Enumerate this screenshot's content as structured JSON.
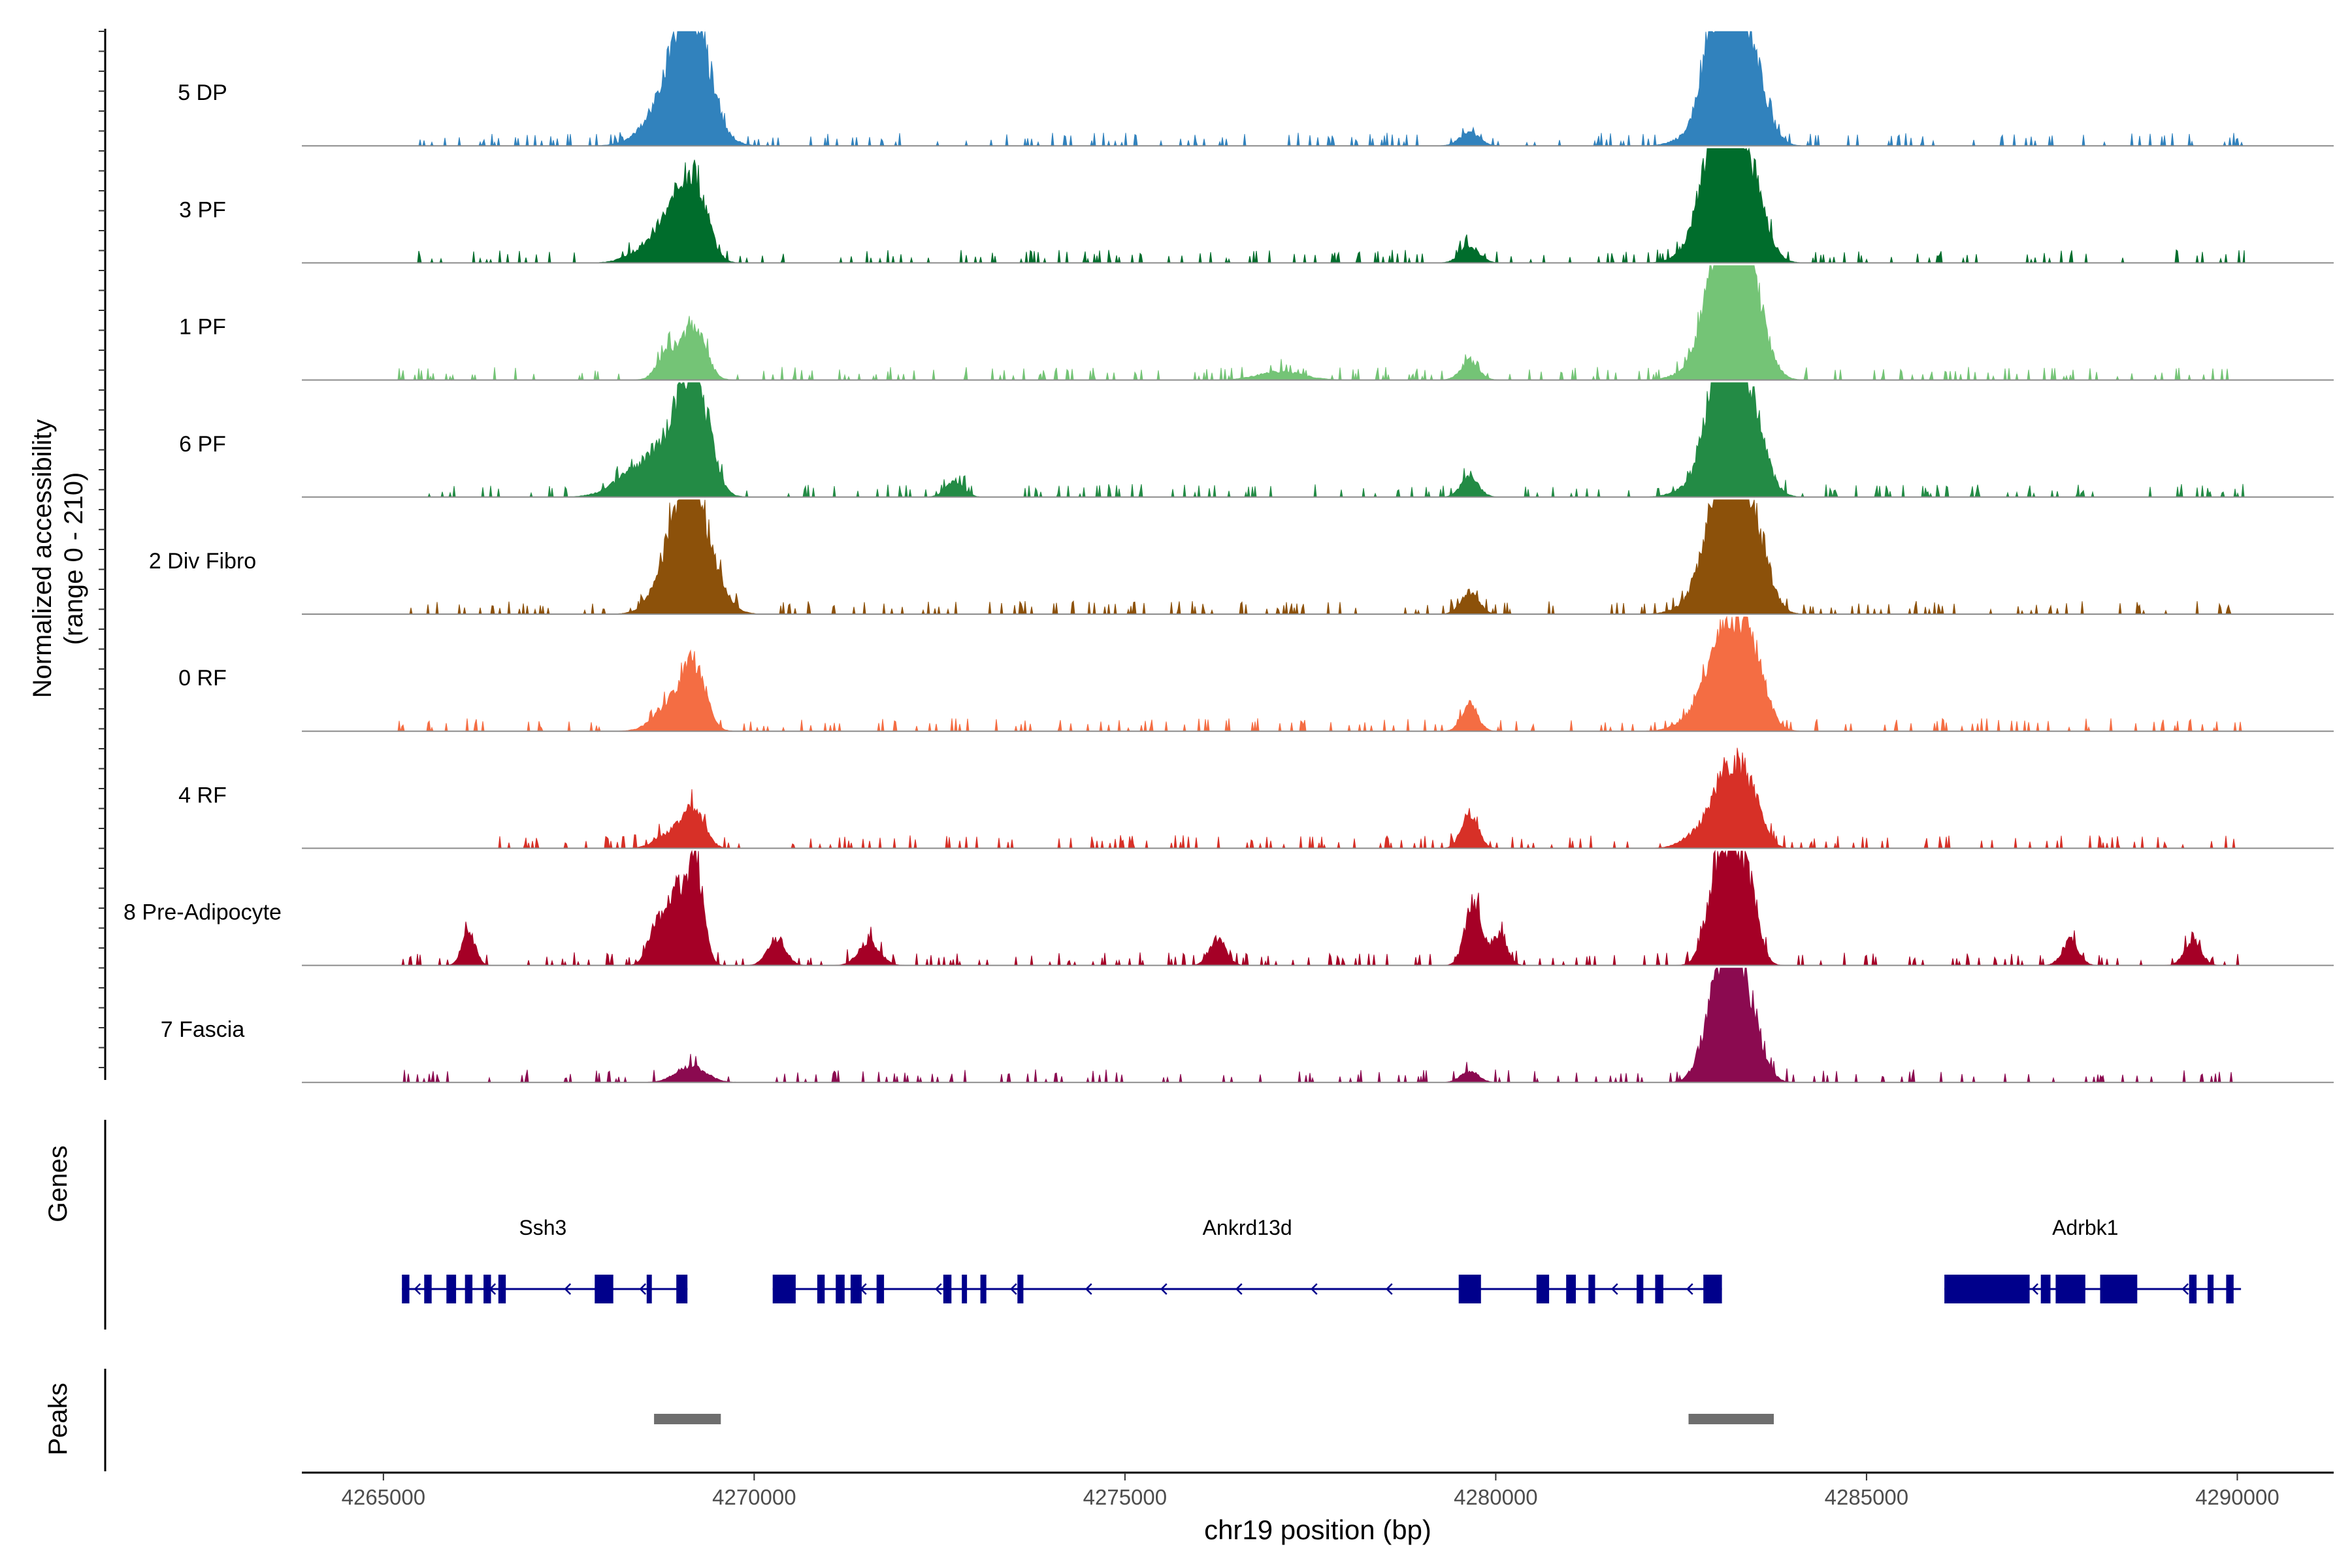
{
  "chart_data": {
    "type": "area",
    "title": "",
    "ylabel_line1": "Normalized accessibility",
    "ylabel_line2": "(range 0 - 210)",
    "ylim": [
      0,
      210
    ],
    "xlabel": "chr19 position (bp)",
    "xlim": [
      4263900,
      4291300
    ],
    "xticks": [
      4265000,
      4270000,
      4275000,
      4280000,
      4285000,
      4290000
    ],
    "xtick_labels": [
      "4265000",
      "4270000",
      "4275000",
      "4280000",
      "4285000",
      "4290000"
    ],
    "track_start": 4265200,
    "track_end": 4290100,
    "grid": false,
    "series": [
      {
        "name": "5 DP",
        "color": "#3182bd",
        "peaks": [
          [
            4269150,
            210,
            230
          ],
          [
            4269000,
            45,
            360
          ],
          [
            4268750,
            35,
            250
          ],
          [
            4279650,
            25,
            130
          ],
          [
            4282900,
            120,
            150
          ],
          [
            4283150,
            200,
            220
          ],
          [
            4283450,
            120,
            200
          ],
          [
            4282600,
            15,
            200
          ]
        ]
      },
      {
        "name": "3 PF",
        "color": "#006d2c",
        "peaks": [
          [
            4269200,
            140,
            170
          ],
          [
            4268900,
            75,
            180
          ],
          [
            4268600,
            30,
            250
          ],
          [
            4279650,
            30,
            130
          ],
          [
            4283150,
            200,
            230
          ],
          [
            4282900,
            120,
            180
          ],
          [
            4283450,
            100,
            200
          ],
          [
            4282600,
            15,
            200
          ]
        ]
      },
      {
        "name": "1 PF",
        "color": "#74c476",
        "peaks": [
          [
            4269200,
            95,
            150
          ],
          [
            4268850,
            55,
            140
          ],
          [
            4279650,
            35,
            120
          ],
          [
            4277100,
            15,
            300
          ],
          [
            4283200,
            210,
            210
          ],
          [
            4282950,
            130,
            180
          ],
          [
            4283450,
            120,
            200
          ],
          [
            4282600,
            15,
            200
          ]
        ]
      },
      {
        "name": "6 PF",
        "color": "#238b45",
        "peaks": [
          [
            4269200,
            195,
            190
          ],
          [
            4268900,
            90,
            270
          ],
          [
            4268400,
            40,
            300
          ],
          [
            4272700,
            30,
            120
          ],
          [
            4279650,
            35,
            120
          ],
          [
            4283200,
            200,
            200
          ],
          [
            4282950,
            140,
            170
          ],
          [
            4283450,
            110,
            200
          ],
          [
            4282600,
            15,
            200
          ]
        ]
      },
      {
        "name": "2 Div Fibro",
        "color": "#8c510a",
        "peaks": [
          [
            4269150,
            195,
            200
          ],
          [
            4268900,
            95,
            230
          ],
          [
            4269450,
            45,
            200
          ],
          [
            4279650,
            40,
            120
          ],
          [
            4283200,
            205,
            220
          ],
          [
            4282950,
            130,
            180
          ],
          [
            4283500,
            110,
            190
          ],
          [
            4282600,
            15,
            200
          ]
        ]
      },
      {
        "name": "0 RF",
        "color": "#f46d43",
        "peaks": [
          [
            4269200,
            105,
            150
          ],
          [
            4268900,
            55,
            220
          ],
          [
            4279650,
            45,
            110
          ],
          [
            4283150,
            160,
            230
          ],
          [
            4283450,
            110,
            190
          ],
          [
            4282800,
            40,
            250
          ]
        ]
      },
      {
        "name": "4 RF",
        "color": "#d73027",
        "peaks": [
          [
            4269200,
            65,
            140
          ],
          [
            4268900,
            30,
            200
          ],
          [
            4279650,
            65,
            110
          ],
          [
            4283150,
            145,
            220
          ],
          [
            4283450,
            60,
            160
          ],
          [
            4282700,
            20,
            200
          ]
        ]
      },
      {
        "name": "8 Pre-Adipocyte",
        "color": "#a50026",
        "peaks": [
          [
            4269200,
            190,
            110
          ],
          [
            4268950,
            120,
            110
          ],
          [
            4268700,
            80,
            120
          ],
          [
            4266150,
            60,
            90
          ],
          [
            4270300,
            50,
            120
          ],
          [
            4271550,
            45,
            140
          ],
          [
            4276250,
            50,
            110
          ],
          [
            4279700,
            120,
            110
          ],
          [
            4280050,
            60,
            100
          ],
          [
            4283200,
            200,
            160
          ],
          [
            4282950,
            120,
            140
          ],
          [
            4283450,
            90,
            120
          ],
          [
            4287750,
            45,
            110
          ],
          [
            4289400,
            45,
            110
          ]
        ]
      },
      {
        "name": "7 Fascia",
        "color": "#8b0a50",
        "peaks": [
          [
            4283200,
            200,
            180
          ],
          [
            4282950,
            110,
            180
          ],
          [
            4283450,
            80,
            170
          ],
          [
            4269150,
            30,
            200
          ],
          [
            4279650,
            20,
            120
          ]
        ]
      }
    ],
    "genes": {
      "label": "Genes",
      "strand": "-",
      "items": [
        {
          "name": "Ssh3",
          "start": 4265250,
          "end": 4269100,
          "label_pos": 4267150,
          "exons": [
            [
              4265250,
              4265350
            ],
            [
              4265550,
              4265650
            ],
            [
              4265850,
              4265980
            ],
            [
              4266100,
              4266200
            ],
            [
              4266350,
              4266450
            ],
            [
              4266550,
              4266650
            ],
            [
              4267850,
              4268100
            ],
            [
              4268550,
              4268620
            ],
            [
              4268950,
              4269100
            ]
          ]
        },
        {
          "name": "Ankrd13d",
          "start": 4270250,
          "end": 4283050,
          "label_pos": 4276650,
          "exons": [
            [
              4270250,
              4270560
            ],
            [
              4270850,
              4270950
            ],
            [
              4271100,
              4271220
            ],
            [
              4271300,
              4271450
            ],
            [
              4271650,
              4271750
            ],
            [
              4272550,
              4272660
            ],
            [
              4272800,
              4272870
            ],
            [
              4273050,
              4273130
            ],
            [
              4273550,
              4273630
            ],
            [
              4279500,
              4279800
            ],
            [
              4280550,
              4280720
            ],
            [
              4280950,
              4281080
            ],
            [
              4281250,
              4281340
            ],
            [
              4281900,
              4281990
            ],
            [
              4282150,
              4282260
            ],
            [
              4282800,
              4283050
            ]
          ]
        },
        {
          "name": "Adrbk1",
          "start": 4286050,
          "end": 4290050,
          "label_pos": 4287950,
          "exons": [
            [
              4286050,
              4287200
            ],
            [
              4287350,
              4287480
            ],
            [
              4287550,
              4287950
            ],
            [
              4288150,
              4288650
            ],
            [
              4289350,
              4289450
            ],
            [
              4289600,
              4289680
            ],
            [
              4289850,
              4289950
            ]
          ]
        }
      ]
    },
    "peaks_track": {
      "label": "Peaks",
      "regions": [
        [
          4268650,
          4269550
        ],
        [
          4282600,
          4283750
        ]
      ]
    }
  }
}
